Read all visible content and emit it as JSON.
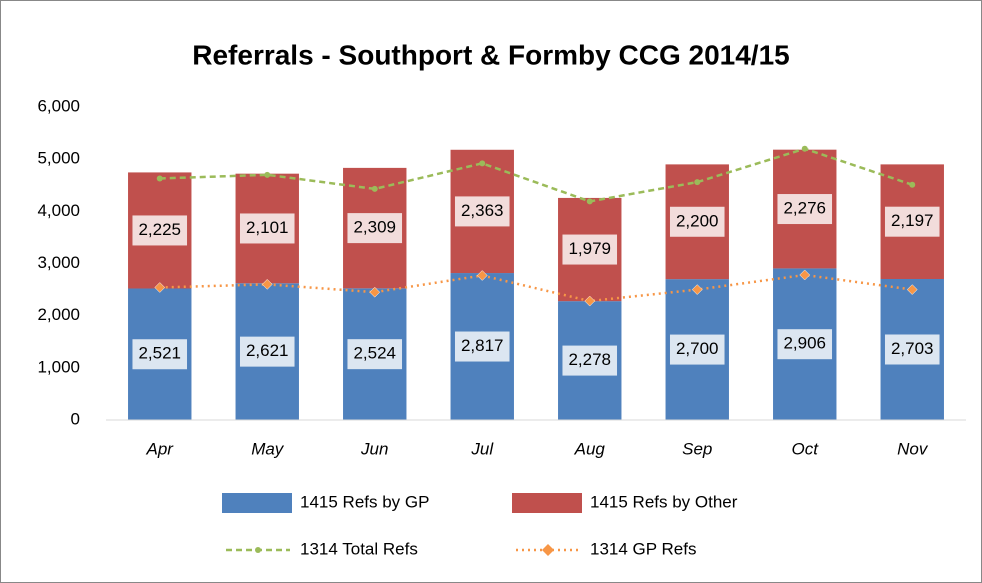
{
  "chart_data": {
    "type": "bar",
    "stacked": true,
    "title": "Referrals - Southport & Formby CCG 2014/15",
    "categories": [
      "Apr",
      "May",
      "Jun",
      "Jul",
      "Aug",
      "Sep",
      "Oct",
      "Nov"
    ],
    "series": [
      {
        "name": "1415 Refs by GP",
        "type": "bar",
        "color": "#4f81bd",
        "label_fill": "#dce6f1",
        "values": [
          2521,
          2621,
          2524,
          2817,
          2278,
          2700,
          2906,
          2703
        ],
        "value_labels": [
          "2,521",
          "2,621",
          "2,524",
          "2,817",
          "2,278",
          "2,700",
          "2,906",
          "2,703"
        ]
      },
      {
        "name": "1415 Refs by Other",
        "type": "bar",
        "color": "#c0504d",
        "label_fill": "#f2dcdb",
        "values": [
          2225,
          2101,
          2309,
          2363,
          1979,
          2200,
          2276,
          2197
        ],
        "value_labels": [
          "2,225",
          "2,101",
          "2,309",
          "2,363",
          "1,979",
          "2,200",
          "2,276",
          "2,197"
        ]
      },
      {
        "name": "1314 Total Refs",
        "type": "line",
        "color": "#9bbb59",
        "line_style": "dashed",
        "marker": "circle",
        "values": [
          4630,
          4700,
          4430,
          4920,
          4190,
          4560,
          5200,
          4510
        ]
      },
      {
        "name": "1314 GP Refs",
        "type": "line",
        "color": "#f79646",
        "line_style": "dotted",
        "marker": "diamond",
        "values": [
          2540,
          2600,
          2450,
          2770,
          2280,
          2500,
          2780,
          2500
        ]
      }
    ],
    "ylim": [
      0,
      6000
    ],
    "yticks": [
      0,
      {
        "value": 1000,
        "label": "1,000"
      },
      {
        "value": 2000,
        "label": "2,000"
      },
      {
        "value": 3000,
        "label": "3,000"
      },
      {
        "value": 4000,
        "label": "4,000"
      },
      {
        "value": 5000,
        "label": "5,000"
      },
      {
        "value": 6000,
        "label": "6,000"
      }
    ],
    "grid": false,
    "legend": "bottom"
  }
}
